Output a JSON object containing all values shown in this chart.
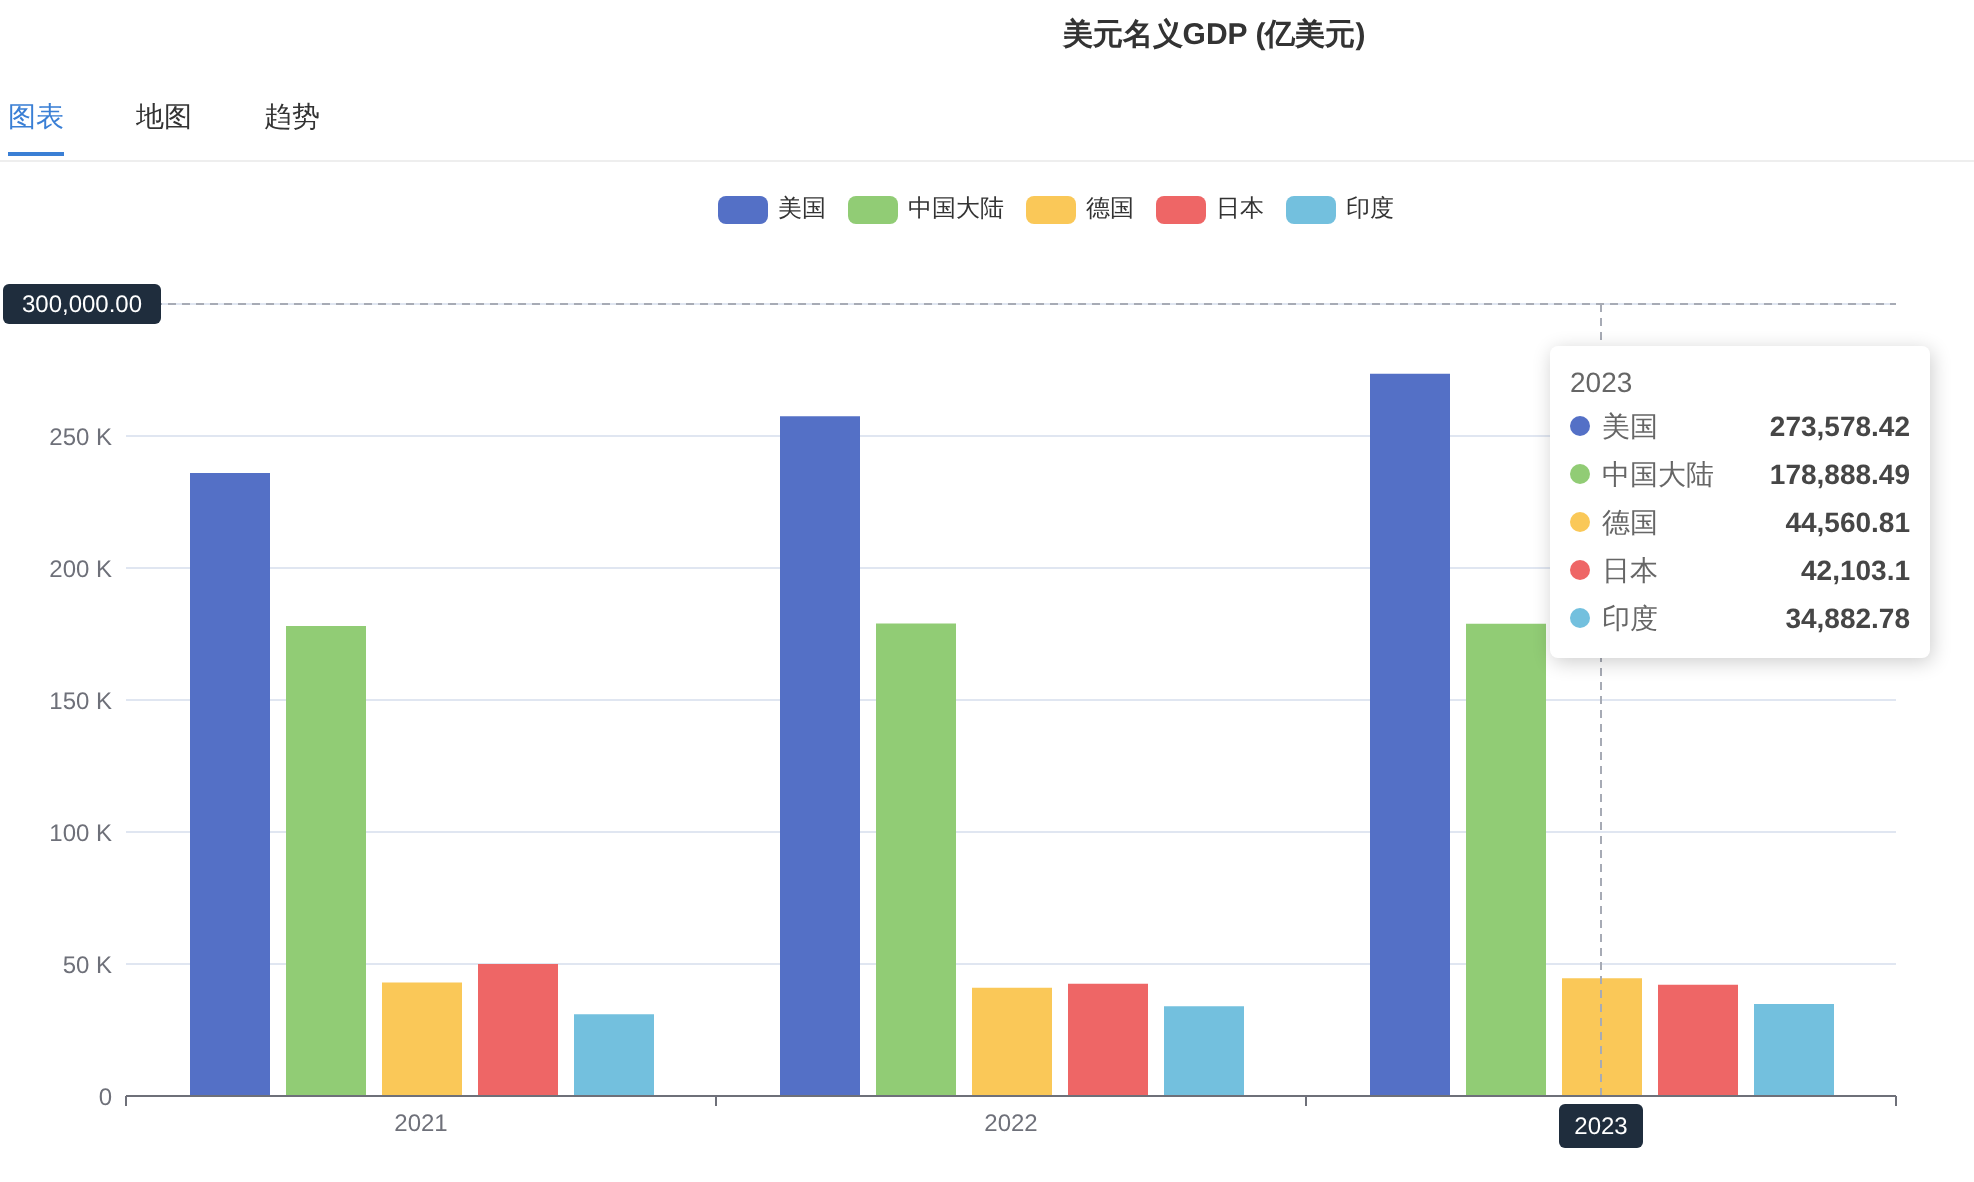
{
  "chart_data": {
    "type": "bar",
    "title": "美元名义GDP (亿美元)",
    "categories": [
      "2021",
      "2022",
      "2023"
    ],
    "series": [
      {
        "name": "美国",
        "color": "#5470c6",
        "values": [
          236000,
          257500,
          273578.42
        ]
      },
      {
        "name": "中国大陆",
        "color": "#91cc75",
        "values": [
          178000,
          179000,
          178888.49
        ]
      },
      {
        "name": "德国",
        "color": "#fac858",
        "values": [
          43000,
          41000,
          44560.81
        ]
      },
      {
        "name": "日本",
        "color": "#ee6666",
        "values": [
          50000,
          42500,
          42103.1
        ]
      },
      {
        "name": "印度",
        "color": "#73c0de",
        "values": [
          31000,
          34000,
          34882.78
        ]
      }
    ],
    "ylim": [
      0,
      300000
    ],
    "yticks": [
      0,
      {
        "value": 50000,
        "label": "50 K"
      },
      {
        "value": 100000,
        "label": "100 K"
      },
      {
        "value": 150000,
        "label": "150 K"
      },
      {
        "value": 200000,
        "label": "200 K"
      },
      {
        "value": 250000,
        "label": "250 K"
      },
      {
        "value": 300000,
        "label": null
      }
    ],
    "grid": "y",
    "legend": "top",
    "ref_lines": [
      {
        "axis": "y",
        "value": 300000,
        "label": "300,000.00",
        "line_style": "dashed",
        "color": "#a7abb5"
      },
      {
        "axis": "x",
        "value": "2023",
        "line_style": "dashed",
        "color": "#a7abb5"
      }
    ],
    "annotations": [
      "图表",
      "地图",
      "趋势",
      "2023",
      "273,578.42",
      "178,888.49",
      "44,560.81",
      "42,103.1",
      "34,882.78"
    ]
  }
}
